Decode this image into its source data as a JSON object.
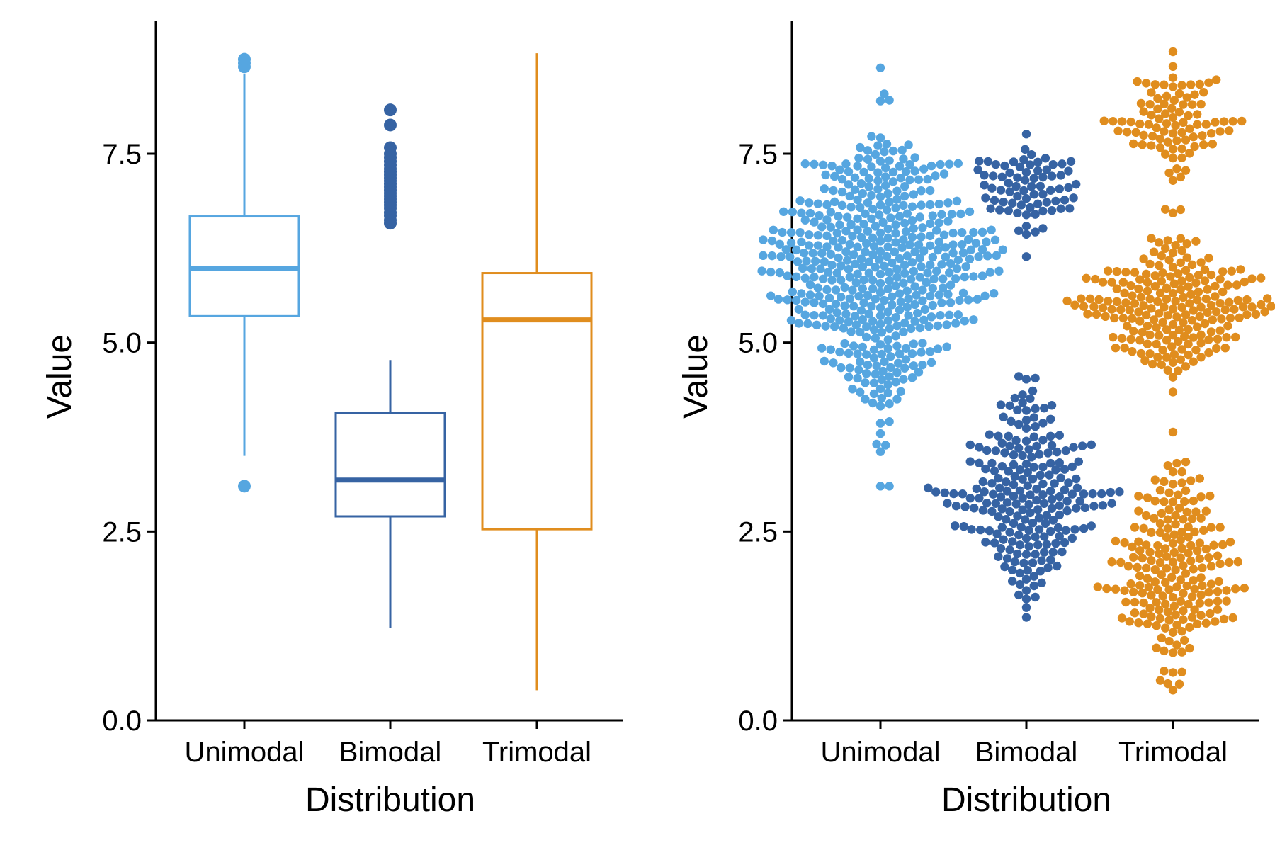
{
  "chart_data": [
    {
      "type": "boxplot",
      "xlabel": "Distribution",
      "ylabel": "Value",
      "ylim": [
        0,
        9
      ],
      "yticks": [
        "0.0",
        "2.5",
        "5.0",
        "7.5"
      ],
      "grid": false,
      "legend": "none",
      "categories": [
        "Unimodal",
        "Bimodal",
        "Trimodal"
      ],
      "series": [
        {
          "category": "Unimodal",
          "color": "#56A6E0",
          "whisker_low": 3.5,
          "q1": 5.35,
          "median": 5.98,
          "q3": 6.67,
          "whisker_high": 8.55,
          "outliers": [
            3.1,
            8.65,
            8.7,
            8.75
          ]
        },
        {
          "category": "Bimodal",
          "color": "#3663A3",
          "whisker_low": 1.22,
          "q1": 2.7,
          "median": 3.18,
          "q3": 4.07,
          "whisker_high": 4.77,
          "outliers": [
            6.58,
            6.62,
            6.68,
            6.72,
            6.78,
            6.82,
            6.86,
            6.9,
            6.94,
            6.98,
            7.02,
            7.06,
            7.1,
            7.14,
            7.18,
            7.22,
            7.26,
            7.3,
            7.35,
            7.4,
            7.45,
            7.5,
            7.58,
            7.88,
            8.08
          ]
        },
        {
          "category": "Trimodal",
          "color": "#E08D1E",
          "whisker_low": 0.4,
          "q1": 2.53,
          "median": 5.3,
          "q3": 5.92,
          "whisker_high": 8.83,
          "outliers": []
        }
      ]
    },
    {
      "type": "beeswarm",
      "xlabel": "Distribution",
      "ylabel": "Value",
      "ylim": [
        0,
        9
      ],
      "yticks": [
        "0.0",
        "2.5",
        "5.0",
        "7.5"
      ],
      "grid": false,
      "legend": "none",
      "categories": [
        "Unimodal",
        "Bimodal",
        "Trimodal"
      ],
      "series": [
        {
          "category": "Unimodal",
          "color": "#56A6E0",
          "n": 500,
          "modes": [
            {
              "mean": 6.0,
              "sd": 0.95,
              "weight": 1.0
            }
          ],
          "range": [
            3.1,
            8.75
          ]
        },
        {
          "category": "Bimodal",
          "color": "#3663A3",
          "n": 300,
          "modes": [
            {
              "mean": 3.0,
              "sd": 0.65,
              "weight": 0.75
            },
            {
              "mean": 7.0,
              "sd": 0.3,
              "weight": 0.25
            }
          ],
          "range": [
            1.2,
            8.1
          ]
        },
        {
          "category": "Trimodal",
          "color": "#E08D1E",
          "n": 500,
          "modes": [
            {
              "mean": 2.0,
              "sd": 0.65,
              "weight": 0.4
            },
            {
              "mean": 5.5,
              "sd": 0.42,
              "weight": 0.42
            },
            {
              "mean": 7.95,
              "sd": 0.32,
              "weight": 0.18
            }
          ],
          "range": [
            0.4,
            8.85
          ]
        }
      ]
    }
  ]
}
